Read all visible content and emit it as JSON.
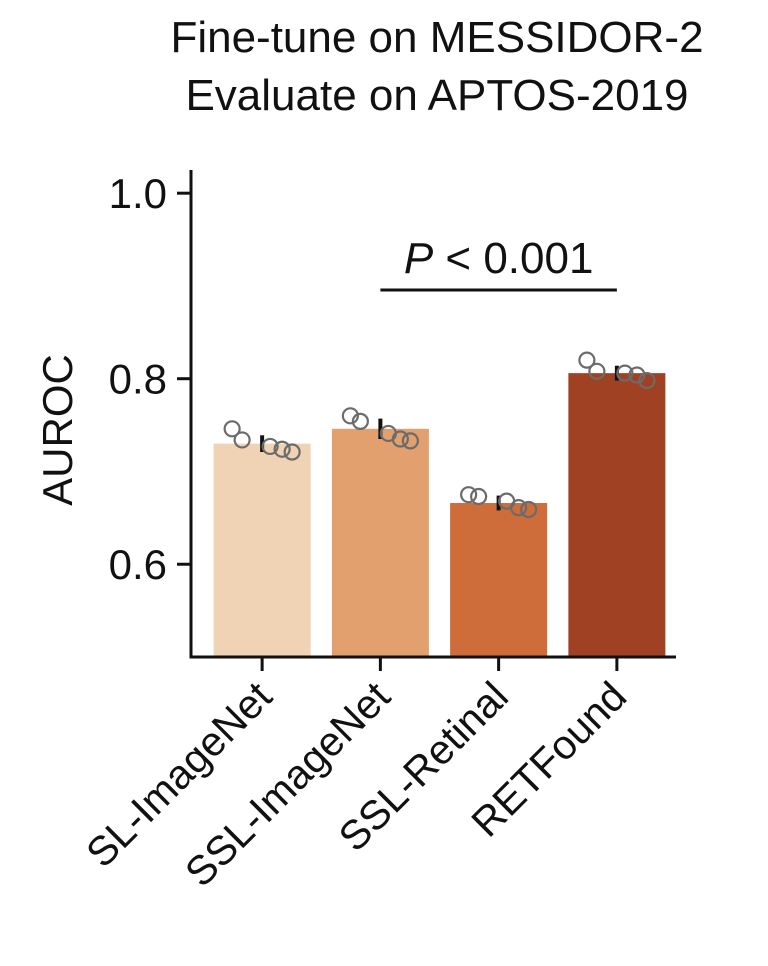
{
  "chart_data": {
    "type": "bar",
    "title_lines": [
      "Fine-tune on MESSIDOR-2",
      "Evaluate on APTOS-2019"
    ],
    "ylabel": "AUROC",
    "ylim": [
      0.5,
      1.025
    ],
    "yticks": [
      0.6,
      0.8,
      1.0
    ],
    "ytick_labels": [
      "0.6",
      "0.8",
      "1.0"
    ],
    "categories": [
      "SL-ImageNet",
      "SSL-ImageNet",
      "SSL-Retinal",
      "RETFound"
    ],
    "values": [
      0.73,
      0.746,
      0.666,
      0.806
    ],
    "errors": [
      0.009,
      0.011,
      0.008,
      0.008
    ],
    "colors": [
      "#f0d2b4",
      "#e2a06f",
      "#ce6d3a",
      "#a14123"
    ],
    "points": [
      [
        0.746,
        0.734,
        0.727,
        0.724,
        0.721
      ],
      [
        0.76,
        0.754,
        0.741,
        0.735,
        0.733
      ],
      [
        0.675,
        0.673,
        0.668,
        0.661,
        0.659
      ],
      [
        0.82,
        0.808,
        0.806,
        0.804,
        0.798
      ]
    ],
    "annotation": {
      "p_symbol": "P",
      "text": " < 0.001",
      "from_category": 1,
      "to_category": 3
    },
    "grid": false,
    "legend": "none"
  }
}
